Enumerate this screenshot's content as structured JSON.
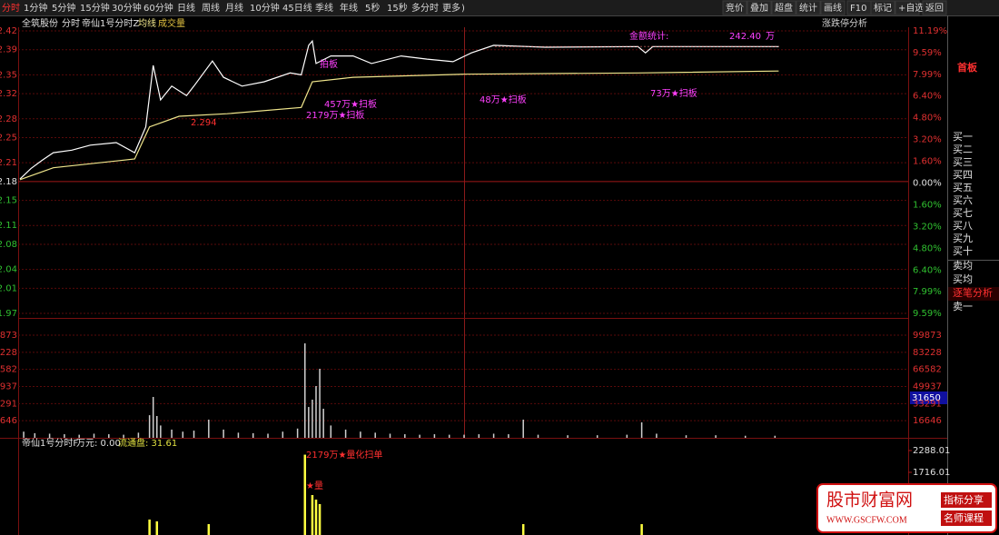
{
  "toolbar": {
    "left": [
      "分时",
      "1分钟",
      "5分钟",
      "15分钟",
      "30分钟",
      "60分钟",
      "日线",
      "周线",
      "月线",
      "10分钟",
      "45日线",
      "季线",
      "年线",
      "5秒",
      "15秒",
      "多分时",
      "更多",
      ")"
    ],
    "right": [
      "竞价",
      "叠加",
      "超盘",
      "统计",
      "画线",
      "F10",
      "标记",
      "+自选",
      "返回"
    ]
  },
  "header": {
    "stock": "全筑股份",
    "mode": "分时",
    "indicator": "帝仙1号分时Z",
    "avg_label": "均线",
    "vol_label": "成交量",
    "right_label": "涨跌停分析"
  },
  "price_chart": {
    "type": "line",
    "xlim": [
      0,
      240
    ],
    "series": [
      {
        "name": "分时",
        "color": "#ffffff",
        "x": [
          0,
          3,
          6,
          9,
          14,
          19,
          26,
          31,
          34,
          36,
          38,
          41,
          45,
          47,
          52,
          55,
          60,
          66,
          73,
          76,
          78,
          79,
          80,
          84,
          90,
          95,
          103,
          110,
          117,
          122,
          128,
          142,
          167,
          169,
          171,
          205
        ],
        "values": [
          2.184,
          2.201,
          2.214,
          2.226,
          2.23,
          2.238,
          2.242,
          2.226,
          2.267,
          2.365,
          2.31,
          2.332,
          2.317,
          2.332,
          2.372,
          2.346,
          2.332,
          2.339,
          2.353,
          2.35,
          2.397,
          2.404,
          2.368,
          2.38,
          2.38,
          2.368,
          2.38,
          2.375,
          2.371,
          2.385,
          2.397,
          2.394,
          2.395,
          2.385,
          2.395,
          2.395
        ]
      },
      {
        "name": "均线",
        "color": "#f0e68c",
        "x": [
          0,
          9,
          31,
          35,
          43,
          56,
          76,
          79,
          90,
          120,
          167,
          205
        ],
        "values": [
          2.183,
          2.202,
          2.216,
          2.267,
          2.284,
          2.288,
          2.298,
          2.339,
          2.346,
          2.351,
          2.353,
          2.356
        ]
      }
    ],
    "ylim": [
      1.97,
      2.42
    ],
    "yticks": [
      2.42,
      2.39,
      2.35,
      2.32,
      2.28,
      2.25,
      2.21,
      2.18,
      2.15,
      2.11,
      2.08,
      2.04,
      2.01,
      1.97
    ],
    "y2lim": [
      -9.59,
      11.19
    ],
    "y2ticks": [
      {
        "value": 11.19,
        "label": "11.19%"
      },
      {
        "value": 9.59,
        "label": "9.59%"
      },
      {
        "value": 7.99,
        "label": "7.99%"
      },
      {
        "value": 6.4,
        "label": "6.40%"
      },
      {
        "value": 4.8,
        "label": "4.80%"
      },
      {
        "value": 3.2,
        "label": "3.20%"
      },
      {
        "value": 1.6,
        "label": "1.60%"
      },
      {
        "value": 0,
        "label": "0.00%"
      },
      {
        "value": -1.6,
        "label": "1.60%"
      },
      {
        "value": -3.2,
        "label": "3.20%"
      },
      {
        "value": -4.8,
        "label": "4.80%"
      },
      {
        "value": -6.4,
        "label": "6.40%"
      },
      {
        "value": -7.99,
        "label": "7.99%"
      },
      {
        "value": -9.59,
        "label": "9.59%"
      }
    ],
    "annotations": [
      "2.294",
      "拍板",
      "457万★扫板",
      "2179万★扫板",
      "48万★扫板",
      "73万★扫板",
      "金额统计:",
      "242.40",
      "万"
    ],
    "badge": "首板"
  },
  "volume_chart": {
    "type": "bar",
    "color": "#d0d0d0",
    "xlim": [
      0,
      240
    ],
    "x": [
      1,
      4,
      8,
      12,
      16,
      20,
      24,
      28,
      32,
      35,
      36,
      37,
      38,
      41,
      44,
      47,
      51,
      55,
      59,
      63,
      67,
      71,
      75,
      77,
      78,
      79,
      80,
      81,
      82,
      84,
      88,
      92,
      96,
      100,
      104,
      108,
      112,
      116,
      120,
      124,
      128,
      132,
      136,
      140,
      148,
      156,
      164,
      168,
      172,
      180,
      188,
      196,
      204
    ],
    "values": [
      6000,
      4500,
      4000,
      3500,
      3000,
      4000,
      3500,
      3000,
      5000,
      22000,
      39770,
      21210,
      12000,
      8000,
      6000,
      7000,
      17680,
      8000,
      5000,
      4500,
      4000,
      6000,
      9000,
      91900,
      30000,
      37120,
      50380,
      67170,
      28280,
      12000,
      8000,
      6000,
      5000,
      4000,
      3500,
      3000,
      3500,
      3000,
      3000,
      3500,
      4000,
      3500,
      17680,
      3000,
      2500,
      2500,
      3000,
      15030,
      4000,
      2500,
      2500,
      2000,
      2000
    ],
    "ylim": [
      0,
      99873
    ],
    "yticks": [
      99873,
      83228,
      66582,
      49937,
      33291,
      16646
    ],
    "cursor_label": "31650"
  },
  "indicator_chart": {
    "type": "bar",
    "title": "帝仙1号分时F",
    "amount_label": "万元: 0.00",
    "float_label": "流通盘: 31.61",
    "color": "#ffff40",
    "xlim": [
      0,
      240
    ],
    "x": [
      35,
      37,
      51,
      77,
      79,
      80,
      81,
      136,
      168
    ],
    "values": [
      477,
      429,
      357,
      2179,
      1120,
      1000,
      882,
      357,
      357
    ],
    "ylim": [
      0,
      2288.01
    ],
    "yticks": [
      2288.01,
      1716.01
    ],
    "annotations": [
      "2179万★量化扫单",
      "★量"
    ]
  },
  "side_panel": {
    "items": [
      "买一",
      "买二",
      "买三",
      "买四",
      "买五",
      "买六",
      "买七",
      "买八",
      "买九",
      "买十",
      "卖均",
      "买均",
      "逐笔分析",
      "卖一"
    ]
  },
  "watermark": {
    "name": "股市财富网",
    "url": "WWW.GSCFW.COM",
    "tag1": "指标分享",
    "tag2": "名师课程"
  }
}
